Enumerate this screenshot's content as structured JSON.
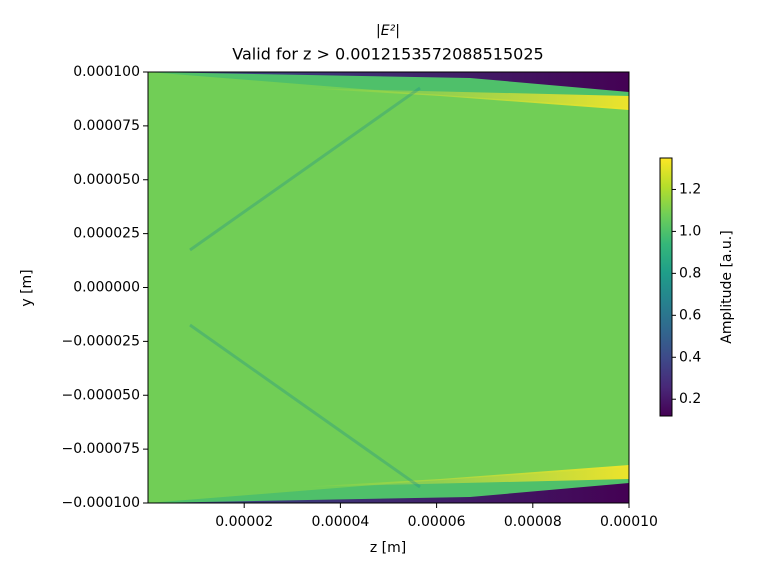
{
  "chart_data": {
    "type": "heatmap",
    "title": "|E²|",
    "subtitle": "Valid for z > 0.0012153572088515025",
    "x_label": "z [m]",
    "y_label": "y [m]",
    "xlim": [
      0,
      0.0001
    ],
    "ylim": [
      -0.0001,
      0.0001
    ],
    "xticks": [
      {
        "value": 2e-05,
        "label": "0.00002"
      },
      {
        "value": 4e-05,
        "label": "0.00004"
      },
      {
        "value": 6e-05,
        "label": "0.00006"
      },
      {
        "value": 8e-05,
        "label": "0.00008"
      },
      {
        "value": 0.0001,
        "label": "0.00010"
      }
    ],
    "yticks": [
      {
        "value": -0.0001,
        "label": "−0.000100"
      },
      {
        "value": -7.5e-05,
        "label": "−0.000075"
      },
      {
        "value": -5e-05,
        "label": "−0.000050"
      },
      {
        "value": -2.5e-05,
        "label": "−0.000025"
      },
      {
        "value": 0,
        "label": "0.000000"
      },
      {
        "value": 2.5e-05,
        "label": "0.000025"
      },
      {
        "value": 5e-05,
        "label": "0.000050"
      },
      {
        "value": 7.5e-05,
        "label": "0.000075"
      },
      {
        "value": 0.0001,
        "label": "0.000100"
      }
    ],
    "colorbar": {
      "label": "Amplitude [a.u.]",
      "colormap": "viridis",
      "clim": [
        0.12,
        1.35
      ],
      "ticks": [
        0.2,
        0.4,
        0.6,
        0.8,
        1.0,
        1.2
      ]
    }
  }
}
